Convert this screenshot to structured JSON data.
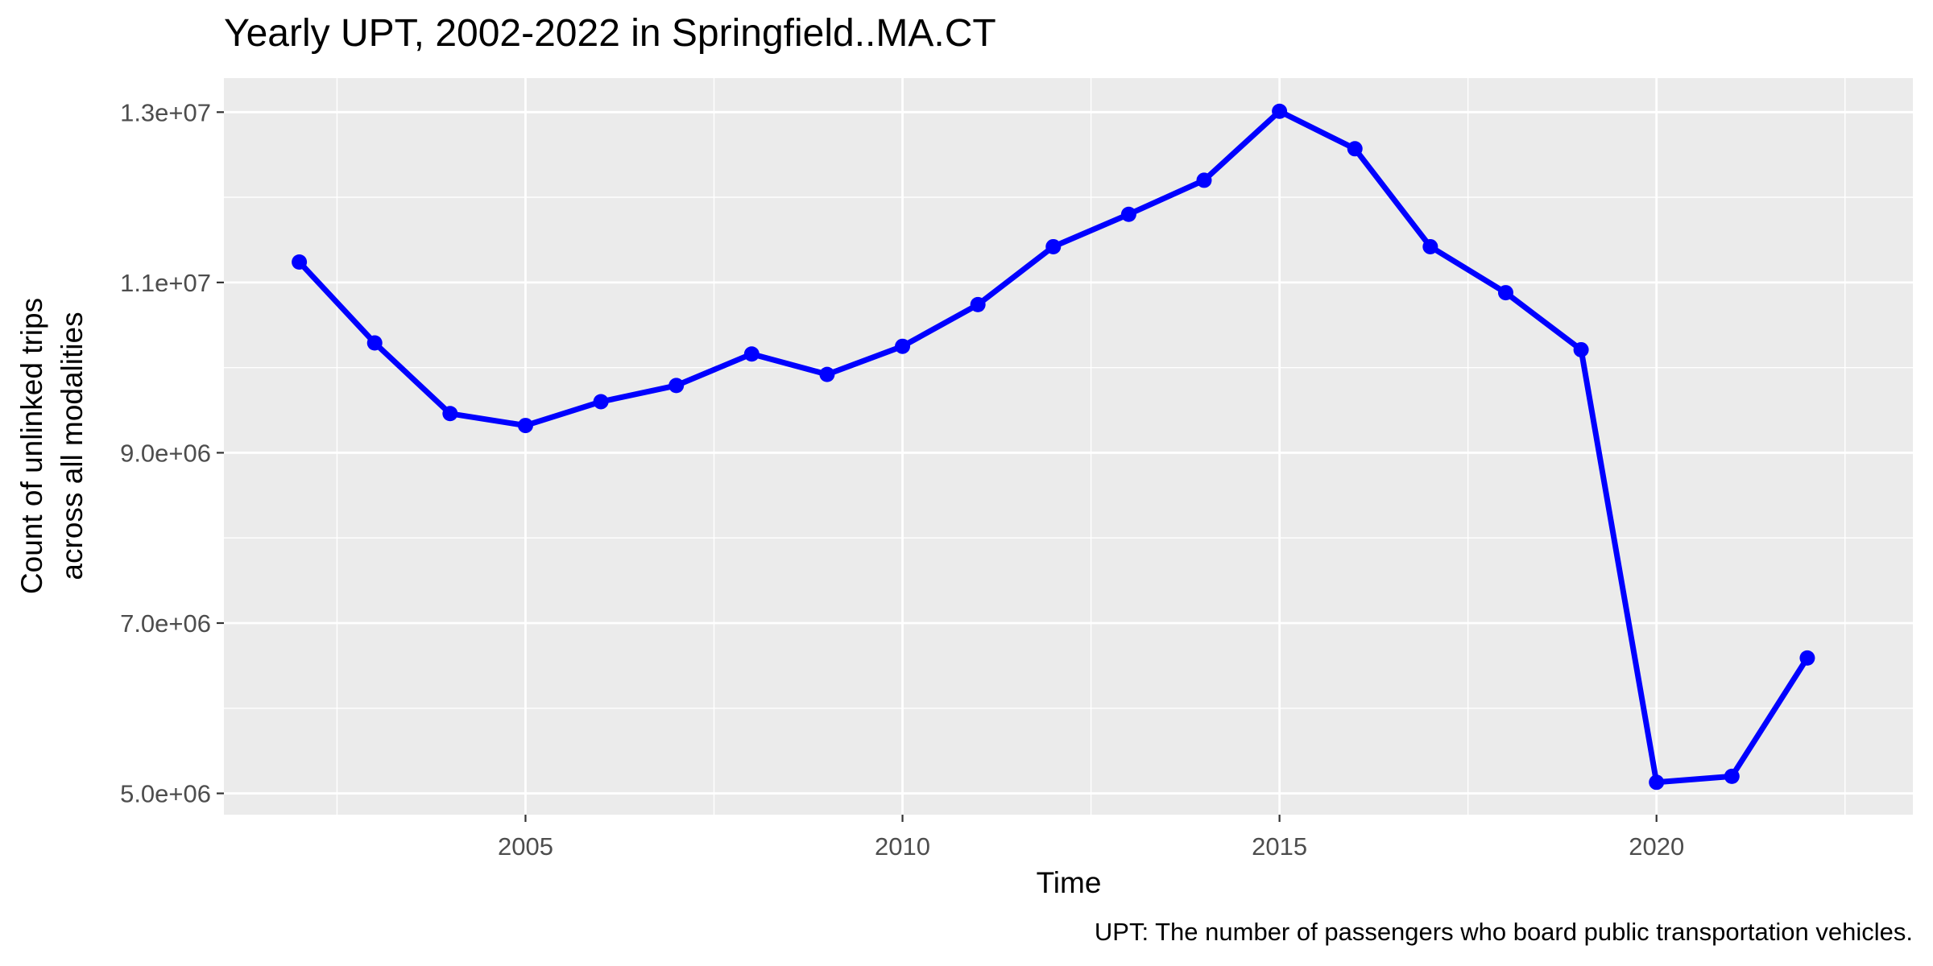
{
  "chart_data": {
    "type": "line",
    "title": "Yearly UPT, 2002-2022 in Springfield..MA.CT",
    "xlabel": "Time",
    "ylabel_lines": [
      "Count of unlinked trips",
      "across all modalities"
    ],
    "caption": "UPT: The number of passengers who board public transportation vehicles.",
    "xlim": [
      2001.0,
      2023.4
    ],
    "ylim": [
      4750000,
      13400000
    ],
    "x_ticks": [
      2005,
      2010,
      2015,
      2020
    ],
    "x_tick_labels": [
      "2005",
      "2010",
      "2015",
      "2020"
    ],
    "x_minor_ticks": [
      2002.5,
      2007.5,
      2012.5,
      2017.5,
      2022.5
    ],
    "y_ticks": [
      5000000,
      7000000,
      9000000,
      11000000,
      13000000
    ],
    "y_tick_labels": [
      "5.0e+06",
      "7.0e+06",
      "9.0e+06",
      "1.1e+07",
      "1.3e+07"
    ],
    "y_minor_ticks": [
      6000000,
      8000000,
      10000000,
      12000000
    ],
    "grid": true,
    "background_color": "#ebebeb",
    "grid_color": "#ffffff",
    "series_color": "#0000ff",
    "series": [
      {
        "x": [
          2002,
          2003,
          2004,
          2005,
          2006,
          2007,
          2008,
          2009,
          2010,
          2011,
          2012,
          2013,
          2014,
          2015,
          2016,
          2017,
          2018,
          2019,
          2020,
          2021,
          2022
        ],
        "values": [
          11240000,
          10290000,
          9460000,
          9320000,
          9600000,
          9790000,
          10160000,
          9920000,
          10250000,
          10740000,
          11420000,
          11800000,
          12200000,
          13010000,
          12570000,
          11420000,
          10880000,
          10210000,
          5130000,
          5200000,
          6590000
        ]
      }
    ]
  }
}
